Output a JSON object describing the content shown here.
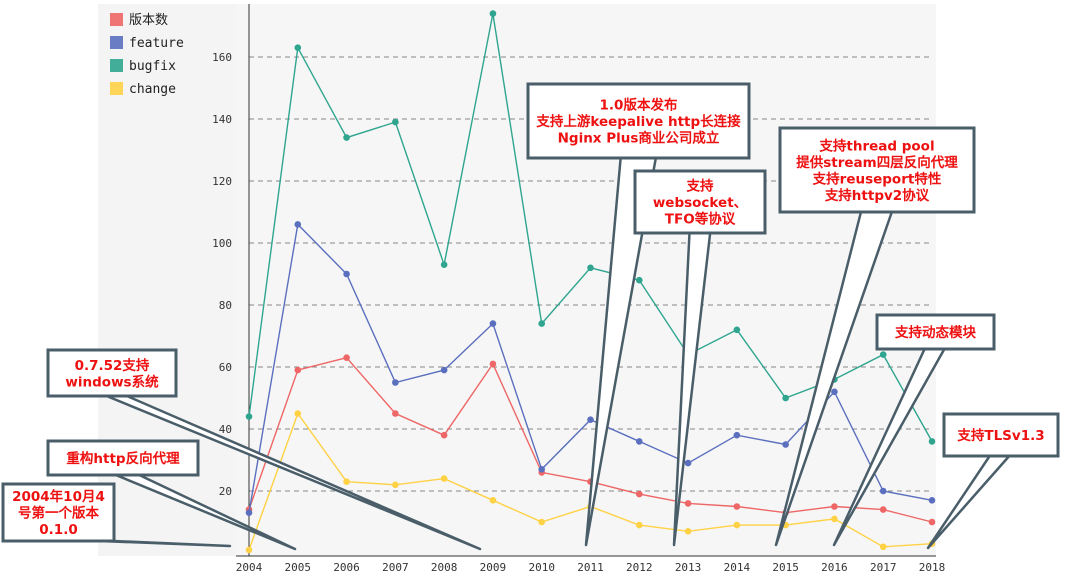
{
  "chart_data": {
    "type": "line",
    "categories": [
      "2004",
      "2005",
      "2006",
      "2007",
      "2008",
      "2009",
      "2010",
      "2011",
      "2012",
      "2013",
      "2014",
      "2015",
      "2016",
      "2017",
      "2018"
    ],
    "ylim": [
      0,
      176
    ],
    "y_ticks": [
      20,
      40,
      60,
      80,
      100,
      120,
      140,
      160
    ],
    "grid": true,
    "legend_placement": "top-left",
    "series": [
      {
        "name": "版本数",
        "color": "#ee6666",
        "values": [
          14,
          59,
          63,
          45,
          38,
          61,
          26,
          23,
          19,
          16,
          15,
          13,
          15,
          14,
          10
        ]
      },
      {
        "name": "feature",
        "color": "#5b6fbf",
        "values": [
          13,
          106,
          90,
          55,
          59,
          74,
          27,
          43,
          36,
          29,
          38,
          35,
          52,
          20,
          17
        ]
      },
      {
        "name": "bugfix",
        "color": "#2fa58f",
        "values": [
          44,
          163,
          134,
          139,
          93,
          174,
          74,
          92,
          88,
          64,
          72,
          50,
          56,
          64,
          36
        ]
      },
      {
        "name": "change",
        "color": "#ffd145",
        "values": [
          1,
          45,
          23,
          22,
          24,
          17,
          10,
          15,
          9,
          7,
          9,
          9,
          11,
          2,
          3
        ]
      }
    ],
    "annotations": [
      {
        "id": "v2004",
        "lines": [
          "2004年10月4",
          "号第一个版本",
          "0.1.0"
        ],
        "target": "2004"
      },
      {
        "id": "http_proxy",
        "lines": [
          "重构http反向代理"
        ],
        "target": "2005"
      },
      {
        "id": "windows",
        "lines": [
          "0.7.52支持",
          "windows系统"
        ],
        "target": "2009"
      },
      {
        "id": "v10",
        "lines": [
          "1.0版本发布",
          "支持上游keepalive http长连接",
          "Nginx Plus商业公司成立"
        ],
        "target": "2011"
      },
      {
        "id": "websocket",
        "lines": [
          "支持",
          "websocket、",
          "TFO等协议"
        ],
        "target": "2013"
      },
      {
        "id": "threadpool",
        "lines": [
          "支持thread pool",
          "提供stream四层反向代理",
          "支持reuseport特性",
          "支持httpv2协议"
        ],
        "target": "2015"
      },
      {
        "id": "dynamic",
        "lines": [
          "支持动态模块"
        ],
        "target": "2016"
      },
      {
        "id": "tls13",
        "lines": [
          "支持TLSv1.3"
        ],
        "target": "2018"
      }
    ]
  }
}
